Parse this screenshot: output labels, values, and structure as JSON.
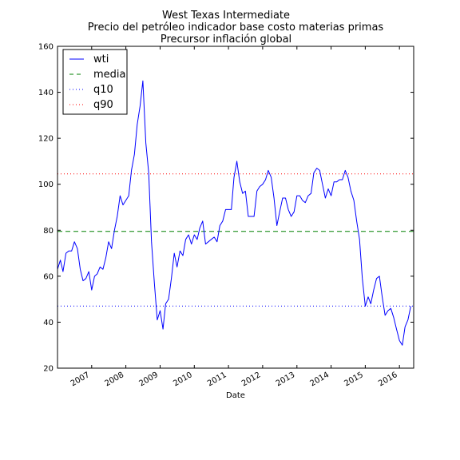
{
  "chart_data": {
    "type": "line",
    "title_lines": [
      "West Texas Intermediate",
      "Precio del petróleo indicador base costo materias primas",
      "Precursor inflación global"
    ],
    "xlabel": "Date",
    "ylabel": "",
    "xlim": [
      "2006-01-01",
      "2016-06-01"
    ],
    "ylim": [
      20,
      160
    ],
    "x_ticks": [
      {
        "date": "2007-01-01",
        "label": "2007"
      },
      {
        "date": "2008-01-01",
        "label": "2008"
      },
      {
        "date": "2009-01-01",
        "label": "2009"
      },
      {
        "date": "2010-01-01",
        "label": "2010"
      },
      {
        "date": "2011-01-01",
        "label": "2011"
      },
      {
        "date": "2012-01-01",
        "label": "2012"
      },
      {
        "date": "2013-01-01",
        "label": "2013"
      },
      {
        "date": "2014-01-01",
        "label": "2014"
      },
      {
        "date": "2015-01-01",
        "label": "2015"
      },
      {
        "date": "2016-01-01",
        "label": "2016"
      }
    ],
    "y_ticks": [
      20,
      40,
      60,
      80,
      100,
      120,
      140,
      160
    ],
    "legend_position": "top-left",
    "series": [
      {
        "name": "wti",
        "style": "solid",
        "color": "#0000ff",
        "points": [
          [
            "2006-01-01",
            63
          ],
          [
            "2006-02-01",
            67
          ],
          [
            "2006-03-01",
            62
          ],
          [
            "2006-04-01",
            70
          ],
          [
            "2006-05-01",
            71
          ],
          [
            "2006-06-01",
            71
          ],
          [
            "2006-07-01",
            75
          ],
          [
            "2006-08-01",
            72
          ],
          [
            "2006-09-01",
            63
          ],
          [
            "2006-10-01",
            58
          ],
          [
            "2006-11-01",
            59
          ],
          [
            "2006-12-01",
            62
          ],
          [
            "2007-01-01",
            54
          ],
          [
            "2007-02-01",
            60
          ],
          [
            "2007-03-01",
            61
          ],
          [
            "2007-04-01",
            64
          ],
          [
            "2007-05-01",
            63
          ],
          [
            "2007-06-01",
            68
          ],
          [
            "2007-07-01",
            75
          ],
          [
            "2007-08-01",
            72
          ],
          [
            "2007-09-01",
            80
          ],
          [
            "2007-10-01",
            86
          ],
          [
            "2007-11-01",
            95
          ],
          [
            "2007-12-01",
            91
          ],
          [
            "2008-01-01",
            93
          ],
          [
            "2008-02-01",
            95
          ],
          [
            "2008-03-01",
            106
          ],
          [
            "2008-04-01",
            113
          ],
          [
            "2008-05-01",
            126
          ],
          [
            "2008-06-01",
            134
          ],
          [
            "2008-07-01",
            145
          ],
          [
            "2008-08-01",
            118
          ],
          [
            "2008-09-01",
            105
          ],
          [
            "2008-10-01",
            75
          ],
          [
            "2008-11-01",
            57
          ],
          [
            "2008-12-01",
            41
          ],
          [
            "2009-01-01",
            45
          ],
          [
            "2009-02-01",
            37
          ],
          [
            "2009-03-01",
            48
          ],
          [
            "2009-04-01",
            50
          ],
          [
            "2009-05-01",
            59
          ],
          [
            "2009-06-01",
            70
          ],
          [
            "2009-07-01",
            64
          ],
          [
            "2009-08-01",
            71
          ],
          [
            "2009-09-01",
            69
          ],
          [
            "2009-10-01",
            76
          ],
          [
            "2009-11-01",
            78
          ],
          [
            "2009-12-01",
            74
          ],
          [
            "2010-01-01",
            78
          ],
          [
            "2010-02-01",
            76
          ],
          [
            "2010-03-01",
            81
          ],
          [
            "2010-04-01",
            84
          ],
          [
            "2010-05-01",
            74
          ],
          [
            "2010-06-01",
            75
          ],
          [
            "2010-07-01",
            76
          ],
          [
            "2010-08-01",
            77
          ],
          [
            "2010-09-01",
            75
          ],
          [
            "2010-10-01",
            82
          ],
          [
            "2010-11-01",
            84
          ],
          [
            "2010-12-01",
            89
          ],
          [
            "2011-01-01",
            89
          ],
          [
            "2011-02-01",
            89
          ],
          [
            "2011-03-01",
            103
          ],
          [
            "2011-04-01",
            110
          ],
          [
            "2011-05-01",
            101
          ],
          [
            "2011-06-01",
            96
          ],
          [
            "2011-07-01",
            97
          ],
          [
            "2011-08-01",
            86
          ],
          [
            "2011-09-01",
            86
          ],
          [
            "2011-10-01",
            86
          ],
          [
            "2011-11-01",
            97
          ],
          [
            "2011-12-01",
            99
          ],
          [
            "2012-01-01",
            100
          ],
          [
            "2012-02-01",
            102
          ],
          [
            "2012-03-01",
            106
          ],
          [
            "2012-04-01",
            103
          ],
          [
            "2012-05-01",
            94
          ],
          [
            "2012-06-01",
            82
          ],
          [
            "2012-07-01",
            88
          ],
          [
            "2012-08-01",
            94
          ],
          [
            "2012-09-01",
            94
          ],
          [
            "2012-10-01",
            89
          ],
          [
            "2012-11-01",
            86
          ],
          [
            "2012-12-01",
            88
          ],
          [
            "2013-01-01",
            95
          ],
          [
            "2013-02-01",
            95
          ],
          [
            "2013-03-01",
            93
          ],
          [
            "2013-04-01",
            92
          ],
          [
            "2013-05-01",
            95
          ],
          [
            "2013-06-01",
            96
          ],
          [
            "2013-07-01",
            105
          ],
          [
            "2013-08-01",
            107
          ],
          [
            "2013-09-01",
            106
          ],
          [
            "2013-10-01",
            100
          ],
          [
            "2013-11-01",
            94
          ],
          [
            "2013-12-01",
            98
          ],
          [
            "2014-01-01",
            95
          ],
          [
            "2014-02-01",
            101
          ],
          [
            "2014-03-01",
            101
          ],
          [
            "2014-04-01",
            102
          ],
          [
            "2014-05-01",
            102
          ],
          [
            "2014-06-01",
            106
          ],
          [
            "2014-07-01",
            103
          ],
          [
            "2014-08-01",
            97
          ],
          [
            "2014-09-01",
            93
          ],
          [
            "2014-10-01",
            84
          ],
          [
            "2014-11-01",
            76
          ],
          [
            "2014-12-01",
            59
          ],
          [
            "2015-01-01",
            47
          ],
          [
            "2015-02-01",
            51
          ],
          [
            "2015-03-01",
            48
          ],
          [
            "2015-04-01",
            54
          ],
          [
            "2015-05-01",
            59
          ],
          [
            "2015-06-01",
            60
          ],
          [
            "2015-07-01",
            51
          ],
          [
            "2015-08-01",
            43
          ],
          [
            "2015-09-01",
            45
          ],
          [
            "2015-10-01",
            46
          ],
          [
            "2015-11-01",
            42
          ],
          [
            "2015-12-01",
            37
          ],
          [
            "2016-01-01",
            32
          ],
          [
            "2016-02-01",
            30
          ],
          [
            "2016-03-01",
            38
          ],
          [
            "2016-04-01",
            41
          ],
          [
            "2016-05-01",
            47
          ]
        ]
      },
      {
        "name": "media",
        "style": "dashed",
        "color": "#008000",
        "y": 79.5
      },
      {
        "name": "q10",
        "style": "dotted",
        "color": "#0000ff",
        "y": 47
      },
      {
        "name": "q90",
        "style": "dotted",
        "color": "#ff0000",
        "y": 104.5
      }
    ]
  }
}
